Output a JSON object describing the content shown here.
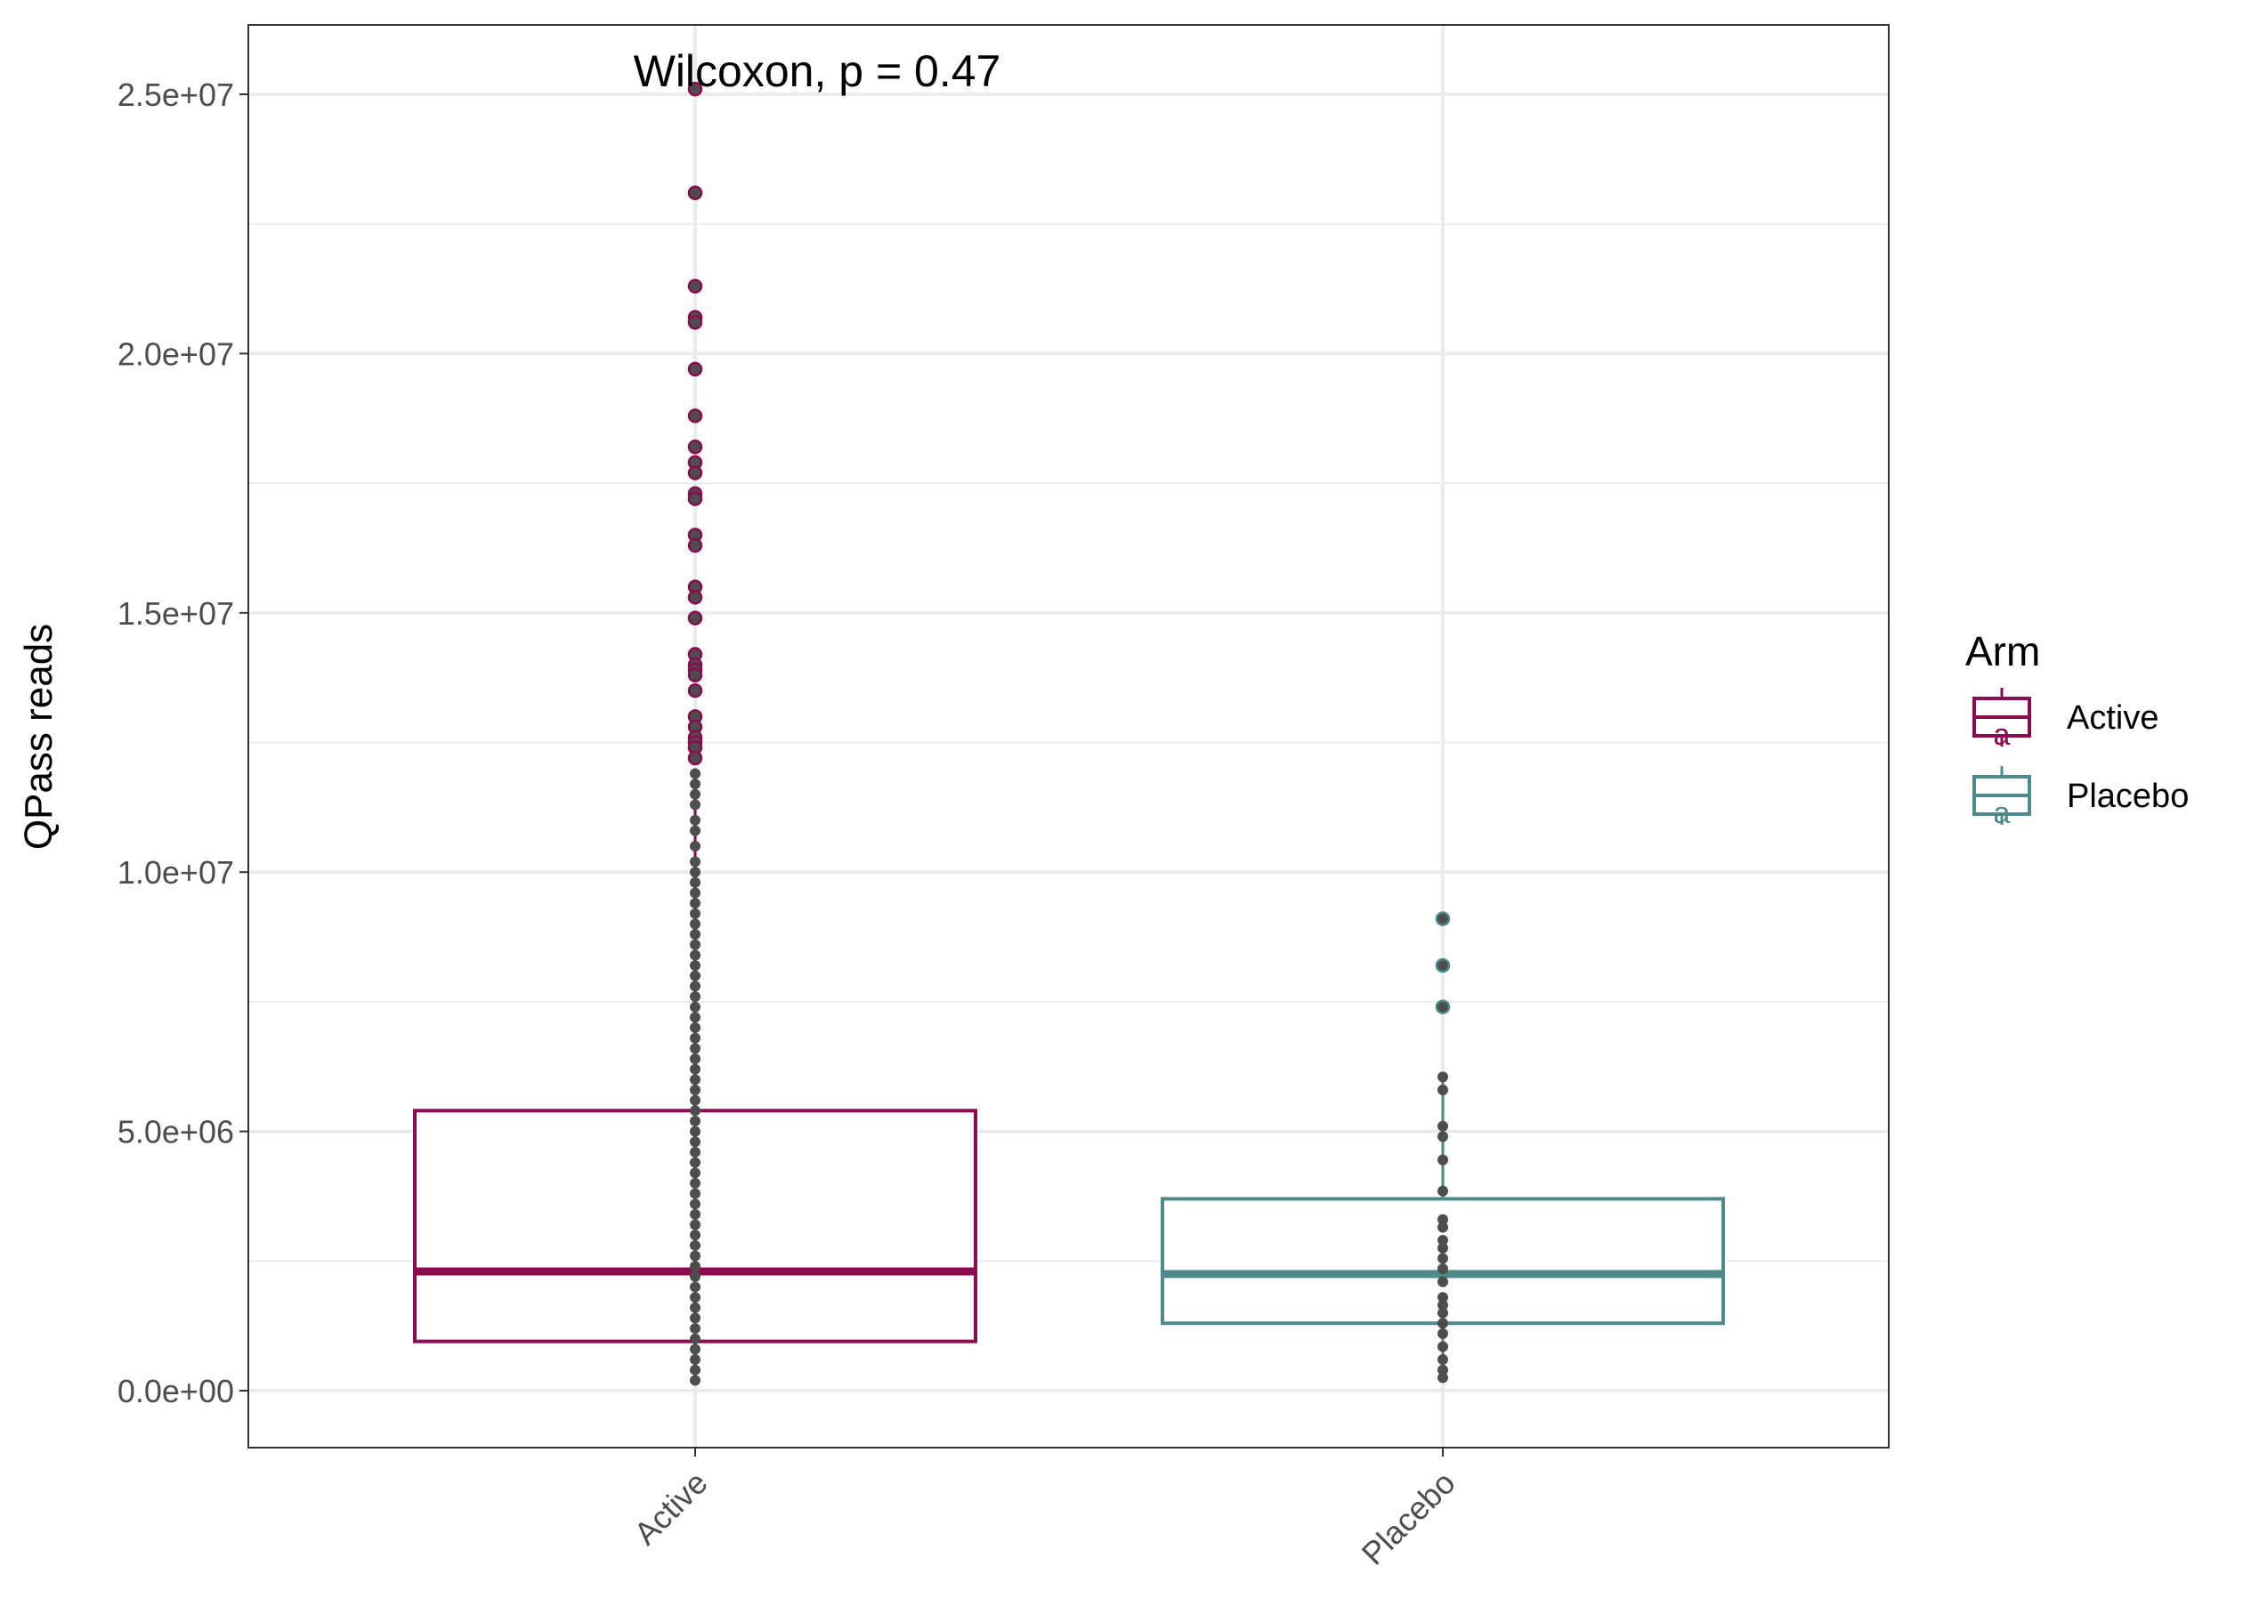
{
  "chart_data": {
    "type": "boxplot",
    "ylabel": "QPass reads",
    "annotation": "Wilcoxon, p = 0.47",
    "categories": [
      "Active",
      "Placebo"
    ],
    "y_ticks": [
      {
        "value": 0,
        "label": "0.0e+00"
      },
      {
        "value": 5000000,
        "label": "5.0e+06"
      },
      {
        "value": 10000000,
        "label": "1.0e+07"
      },
      {
        "value": 15000000,
        "label": "1.5e+07"
      },
      {
        "value": 20000000,
        "label": "2.0e+07"
      },
      {
        "value": 25000000,
        "label": "2.5e+07"
      }
    ],
    "ylim": [
      -1300000,
      26100000
    ],
    "grid": true,
    "legend": {
      "title": "Arm",
      "position": "right",
      "entries": [
        {
          "label": "Active",
          "color": "#8b0a50"
        },
        {
          "label": "Placebo",
          "color": "#4f8a8b"
        }
      ]
    },
    "boxes": [
      {
        "name": "Active",
        "color": "#8b0a50",
        "q1": 950000,
        "median": 2300000,
        "q3": 5400000,
        "whisker_low": 150000,
        "whisker_high": 12000000,
        "outliers": [
          25100000,
          23100000,
          21300000,
          20700000,
          20600000,
          19700000,
          18800000,
          18200000,
          17900000,
          17700000,
          17300000,
          17200000,
          16500000,
          16300000,
          15500000,
          15300000,
          14900000,
          14200000,
          14000000,
          13900000,
          13800000,
          13500000,
          13000000,
          12800000,
          12600000,
          12500000,
          12400000,
          12200000
        ],
        "points": [
          11900000,
          11700000,
          11500000,
          11300000,
          11000000,
          10800000,
          10500000,
          10200000,
          10000000,
          9800000,
          9600000,
          9400000,
          9200000,
          9000000,
          8800000,
          8600000,
          8400000,
          8200000,
          8000000,
          7800000,
          7600000,
          7400000,
          7200000,
          7000000,
          6800000,
          6600000,
          6400000,
          6200000,
          6000000,
          5800000,
          5600000,
          5400000,
          5200000,
          5000000,
          4800000,
          4600000,
          4400000,
          4200000,
          4000000,
          3800000,
          3600000,
          3400000,
          3200000,
          3000000,
          2800000,
          2600000,
          2400000,
          2200000,
          2000000,
          1800000,
          1600000,
          1400000,
          1200000,
          1000000,
          800000,
          600000,
          400000,
          200000
        ]
      },
      {
        "name": "Placebo",
        "color": "#4f8a8b",
        "q1": 1300000,
        "median": 2250000,
        "q3": 3700000,
        "whisker_low": 200000,
        "whisker_high": 6000000,
        "outliers": [
          9100000,
          8200000,
          7400000
        ],
        "points": [
          6050000,
          5800000,
          5100000,
          4900000,
          4450000,
          3850000,
          3300000,
          3150000,
          2900000,
          2750000,
          2550000,
          2350000,
          2100000,
          1800000,
          1650000,
          1500000,
          1300000,
          1100000,
          850000,
          600000,
          400000,
          250000
        ]
      }
    ]
  }
}
